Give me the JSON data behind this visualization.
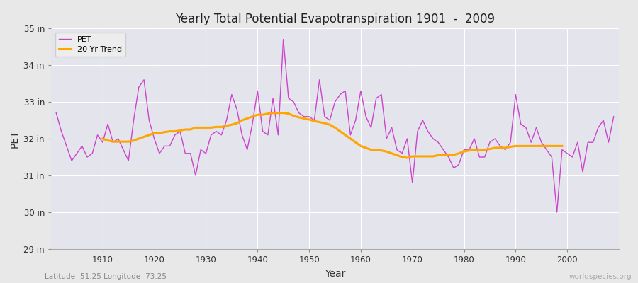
{
  "title": "Yearly Total Potential Evapotranspiration 1901  -  2009",
  "xlabel": "Year",
  "ylabel": "PET",
  "subtitle_left": "Latitude -51.25 Longitude -73.25",
  "subtitle_right": "worldspecies.org",
  "ylim": [
    29,
    35
  ],
  "yticks": [
    29,
    30,
    31,
    32,
    33,
    34,
    35
  ],
  "ytick_labels": [
    "29 in",
    "30 in",
    "31 in",
    "32 in",
    "33 in",
    "34 in",
    "35 in"
  ],
  "pet_color": "#cc44cc",
  "trend_color": "#ffa500",
  "fig_bg_color": "#e8e8e8",
  "plot_bg_color": "#e4e4ec",
  "legend_labels": [
    "PET",
    "20 Yr Trend"
  ],
  "xticks": [
    1910,
    1920,
    1930,
    1940,
    1950,
    1960,
    1970,
    1980,
    1990,
    2000
  ],
  "years": [
    1901,
    1902,
    1903,
    1904,
    1905,
    1906,
    1907,
    1908,
    1909,
    1910,
    1911,
    1912,
    1913,
    1914,
    1915,
    1916,
    1917,
    1918,
    1919,
    1920,
    1921,
    1922,
    1923,
    1924,
    1925,
    1926,
    1927,
    1928,
    1929,
    1930,
    1931,
    1932,
    1933,
    1934,
    1935,
    1936,
    1937,
    1938,
    1939,
    1940,
    1941,
    1942,
    1943,
    1944,
    1945,
    1946,
    1947,
    1948,
    1949,
    1950,
    1951,
    1952,
    1953,
    1954,
    1955,
    1956,
    1957,
    1958,
    1959,
    1960,
    1961,
    1962,
    1963,
    1964,
    1965,
    1966,
    1967,
    1968,
    1969,
    1970,
    1971,
    1972,
    1973,
    1974,
    1975,
    1976,
    1977,
    1978,
    1979,
    1980,
    1981,
    1982,
    1983,
    1984,
    1985,
    1986,
    1987,
    1988,
    1989,
    1990,
    1991,
    1992,
    1993,
    1994,
    1995,
    1996,
    1997,
    1998,
    1999,
    2000,
    2001,
    2002,
    2003,
    2004,
    2005,
    2006,
    2007,
    2008,
    2009
  ],
  "pet_values": [
    32.7,
    32.2,
    31.8,
    31.4,
    31.6,
    31.8,
    31.5,
    31.6,
    32.1,
    31.9,
    32.4,
    31.9,
    32.0,
    31.7,
    31.4,
    32.5,
    33.4,
    33.6,
    32.5,
    32.0,
    31.6,
    31.8,
    31.8,
    32.1,
    32.2,
    31.6,
    31.6,
    31.0,
    31.7,
    31.6,
    32.1,
    32.2,
    32.1,
    32.5,
    33.2,
    32.8,
    32.1,
    31.7,
    32.4,
    33.3,
    32.2,
    32.1,
    33.1,
    32.1,
    34.7,
    33.1,
    33.0,
    32.7,
    32.6,
    32.6,
    32.5,
    33.6,
    32.6,
    32.5,
    33.0,
    33.2,
    33.3,
    32.1,
    32.5,
    33.3,
    32.6,
    32.3,
    33.1,
    33.2,
    32.0,
    32.3,
    31.7,
    31.6,
    32.0,
    30.8,
    32.2,
    32.5,
    32.2,
    32.0,
    31.9,
    31.7,
    31.5,
    31.2,
    31.3,
    31.7,
    31.7,
    32.0,
    31.5,
    31.5,
    31.9,
    32.0,
    31.8,
    31.7,
    31.9,
    33.2,
    32.4,
    32.3,
    31.9,
    32.3,
    31.9,
    31.7,
    31.5,
    30.0,
    31.7,
    31.6,
    31.5,
    31.9,
    31.1,
    31.9,
    31.9,
    32.3,
    32.5,
    31.9,
    32.6
  ],
  "trend_values": [
    null,
    null,
    null,
    null,
    null,
    null,
    null,
    null,
    null,
    32.0,
    31.95,
    31.92,
    31.92,
    31.92,
    31.92,
    31.95,
    32.0,
    32.05,
    32.1,
    32.15,
    32.15,
    32.18,
    32.2,
    32.2,
    32.22,
    32.25,
    32.25,
    32.3,
    32.3,
    32.3,
    32.3,
    32.32,
    32.32,
    32.35,
    32.38,
    32.42,
    32.5,
    32.55,
    32.6,
    32.65,
    32.65,
    32.68,
    32.7,
    32.7,
    32.7,
    32.68,
    32.62,
    32.58,
    32.55,
    32.52,
    32.48,
    32.45,
    32.42,
    32.38,
    32.3,
    32.2,
    32.1,
    32.0,
    31.9,
    31.8,
    31.75,
    31.7,
    31.7,
    31.68,
    31.65,
    31.6,
    31.55,
    31.5,
    31.48,
    31.52,
    31.52,
    31.52,
    31.52,
    31.52,
    31.55,
    31.56,
    31.56,
    31.56,
    31.6,
    31.65,
    31.68,
    31.7,
    31.7,
    31.7,
    31.72,
    31.75,
    31.75,
    31.75,
    31.78,
    31.8,
    31.8,
    31.8,
    31.8,
    31.8,
    31.8,
    31.8,
    31.8,
    31.8,
    31.8,
    null,
    null,
    null,
    null,
    null,
    null,
    null,
    null,
    null,
    null
  ]
}
